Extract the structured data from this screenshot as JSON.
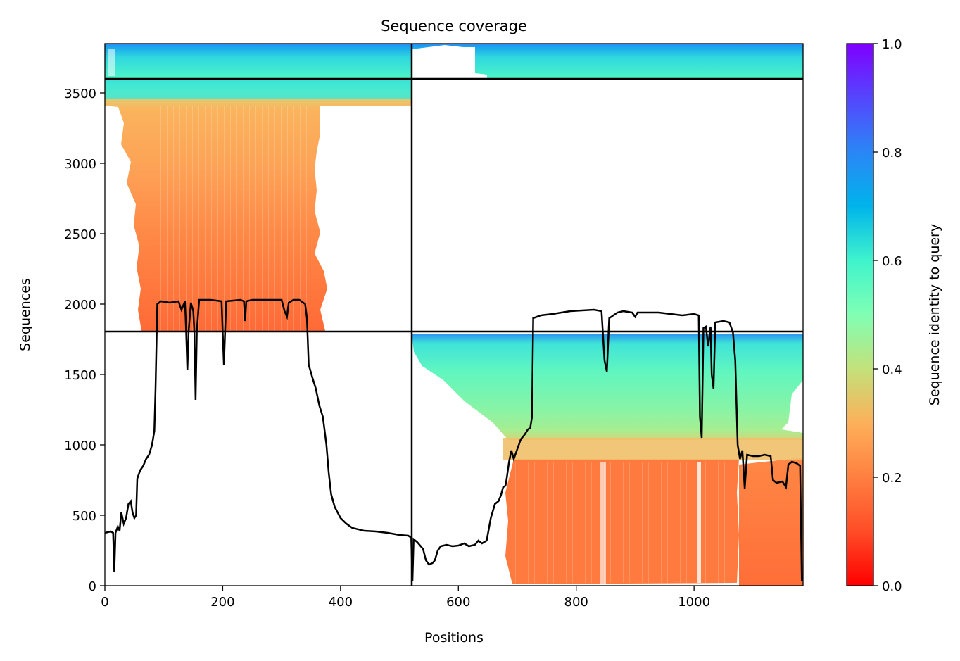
{
  "chart_data": {
    "type": "heatmap",
    "title": "Sequence coverage",
    "xlabel": "Positions",
    "ylabel": "Sequences",
    "xlim": [
      0,
      1185
    ],
    "ylim": [
      0,
      3850
    ],
    "x_ticks": [
      "0",
      "200",
      "400",
      "600",
      "800",
      "1000"
    ],
    "x_tick_values": [
      0,
      200,
      400,
      600,
      800,
      1000
    ],
    "y_ticks": [
      "0",
      "500",
      "1000",
      "1500",
      "2000",
      "2500",
      "3000",
      "3500"
    ],
    "y_tick_values": [
      0,
      500,
      1000,
      1500,
      2000,
      2500,
      3000,
      3500
    ],
    "colorbar": {
      "label": "Sequence identity to query",
      "range": [
        0,
        1
      ],
      "ticks": [
        "0.0",
        "0.2",
        "0.4",
        "0.6",
        "0.8",
        "1.0"
      ],
      "tick_values": [
        0,
        0.2,
        0.4,
        0.6,
        0.8,
        1.0
      ],
      "colormap": "rainbow_r"
    },
    "block_boundaries": {
      "x": [
        523
      ],
      "y": [
        1800,
        3600
      ]
    },
    "blocks": [
      {
        "name": "block-A",
        "x_range": [
          0,
          523
        ],
        "y_range": [
          3600,
          3850
        ],
        "identity_range": [
          0.5,
          0.8
        ]
      },
      {
        "name": "block-B",
        "x_range": [
          523,
          1185
        ],
        "y_range": [
          3600,
          3850
        ],
        "identity_range": [
          0.5,
          0.8
        ]
      },
      {
        "name": "block-C",
        "x_range": [
          0,
          523
        ],
        "y_range": [
          1800,
          3600
        ],
        "identity_range": [
          0.13,
          0.7
        ]
      },
      {
        "name": "block-D",
        "x_range": [
          523,
          1185
        ],
        "y_range": [
          0,
          1800
        ],
        "identity_range": [
          0.14,
          0.75
        ]
      }
    ],
    "coverage_line": {
      "color": "#000000",
      "points": [
        [
          0,
          375
        ],
        [
          10,
          385
        ],
        [
          14,
          375
        ],
        [
          16,
          100
        ],
        [
          18,
          375
        ],
        [
          22,
          420
        ],
        [
          25,
          390
        ],
        [
          28,
          520
        ],
        [
          32,
          440
        ],
        [
          36,
          480
        ],
        [
          40,
          580
        ],
        [
          44,
          600
        ],
        [
          47,
          520
        ],
        [
          50,
          480
        ],
        [
          53,
          500
        ],
        [
          55,
          760
        ],
        [
          60,
          820
        ],
        [
          65,
          850
        ],
        [
          70,
          900
        ],
        [
          75,
          930
        ],
        [
          80,
          1000
        ],
        [
          84,
          1100
        ],
        [
          86,
          1400
        ],
        [
          89,
          2000
        ],
        [
          95,
          2020
        ],
        [
          110,
          2010
        ],
        [
          125,
          2020
        ],
        [
          130,
          1960
        ],
        [
          136,
          2020
        ],
        [
          138,
          1800
        ],
        [
          140,
          1530
        ],
        [
          142,
          1800
        ],
        [
          146,
          2010
        ],
        [
          150,
          1950
        ],
        [
          152,
          1800
        ],
        [
          154,
          1320
        ],
        [
          156,
          1800
        ],
        [
          160,
          2030
        ],
        [
          180,
          2030
        ],
        [
          198,
          2020
        ],
        [
          200,
          1800
        ],
        [
          202,
          1570
        ],
        [
          204,
          1800
        ],
        [
          206,
          2020
        ],
        [
          230,
          2030
        ],
        [
          236,
          2020
        ],
        [
          238,
          1880
        ],
        [
          240,
          2020
        ],
        [
          250,
          2030
        ],
        [
          300,
          2030
        ],
        [
          305,
          1950
        ],
        [
          309,
          1910
        ],
        [
          312,
          2010
        ],
        [
          320,
          2030
        ],
        [
          330,
          2030
        ],
        [
          340,
          2000
        ],
        [
          343,
          1900
        ],
        [
          346,
          1570
        ],
        [
          352,
          1480
        ],
        [
          358,
          1400
        ],
        [
          364,
          1280
        ],
        [
          370,
          1200
        ],
        [
          376,
          1000
        ],
        [
          380,
          800
        ],
        [
          384,
          650
        ],
        [
          390,
          560
        ],
        [
          400,
          480
        ],
        [
          410,
          440
        ],
        [
          420,
          410
        ],
        [
          440,
          390
        ],
        [
          460,
          385
        ],
        [
          480,
          375
        ],
        [
          500,
          360
        ],
        [
          515,
          355
        ],
        [
          520,
          340
        ],
        [
          522,
          30
        ],
        [
          524,
          330
        ],
        [
          530,
          310
        ],
        [
          540,
          260
        ],
        [
          545,
          180
        ],
        [
          550,
          150
        ],
        [
          556,
          160
        ],
        [
          560,
          180
        ],
        [
          565,
          250
        ],
        [
          570,
          280
        ],
        [
          580,
          290
        ],
        [
          590,
          280
        ],
        [
          600,
          285
        ],
        [
          610,
          300
        ],
        [
          618,
          280
        ],
        [
          628,
          290
        ],
        [
          634,
          320
        ],
        [
          640,
          300
        ],
        [
          648,
          320
        ],
        [
          655,
          480
        ],
        [
          662,
          580
        ],
        [
          668,
          600
        ],
        [
          672,
          640
        ],
        [
          676,
          700
        ],
        [
          680,
          710
        ],
        [
          682,
          760
        ],
        [
          686,
          880
        ],
        [
          690,
          960
        ],
        [
          694,
          900
        ],
        [
          700,
          970
        ],
        [
          706,
          1040
        ],
        [
          712,
          1070
        ],
        [
          718,
          1110
        ],
        [
          722,
          1120
        ],
        [
          725,
          1200
        ],
        [
          727,
          1900
        ],
        [
          740,
          1920
        ],
        [
          760,
          1930
        ],
        [
          790,
          1950
        ],
        [
          830,
          1960
        ],
        [
          843,
          1950
        ],
        [
          848,
          1600
        ],
        [
          852,
          1520
        ],
        [
          856,
          1900
        ],
        [
          870,
          1940
        ],
        [
          880,
          1950
        ],
        [
          895,
          1940
        ],
        [
          900,
          1910
        ],
        [
          904,
          1940
        ],
        [
          940,
          1940
        ],
        [
          960,
          1930
        ],
        [
          980,
          1920
        ],
        [
          1000,
          1930
        ],
        [
          1008,
          1920
        ],
        [
          1010,
          1200
        ],
        [
          1013,
          1050
        ],
        [
          1016,
          1830
        ],
        [
          1020,
          1840
        ],
        [
          1024,
          1700
        ],
        [
          1028,
          1840
        ],
        [
          1030,
          1500
        ],
        [
          1033,
          1400
        ],
        [
          1036,
          1870
        ],
        [
          1050,
          1880
        ],
        [
          1060,
          1870
        ],
        [
          1066,
          1800
        ],
        [
          1070,
          1600
        ],
        [
          1074,
          1000
        ],
        [
          1078,
          900
        ],
        [
          1082,
          960
        ],
        [
          1086,
          690
        ],
        [
          1090,
          930
        ],
        [
          1100,
          920
        ],
        [
          1110,
          920
        ],
        [
          1120,
          930
        ],
        [
          1130,
          920
        ],
        [
          1134,
          750
        ],
        [
          1140,
          730
        ],
        [
          1150,
          740
        ],
        [
          1156,
          700
        ],
        [
          1160,
          860
        ],
        [
          1166,
          880
        ],
        [
          1174,
          870
        ],
        [
          1180,
          850
        ],
        [
          1183,
          30
        ]
      ]
    }
  }
}
